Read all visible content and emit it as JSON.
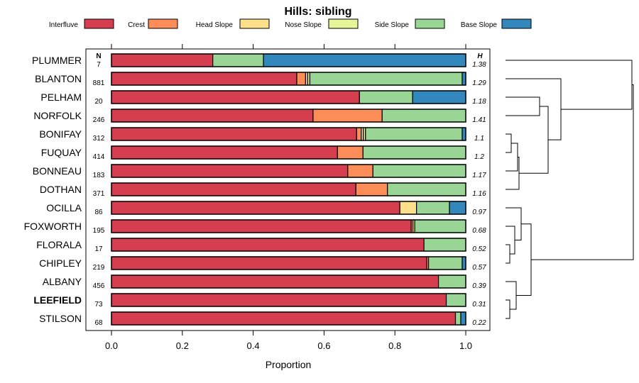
{
  "chart_data": {
    "type": "bar",
    "orientation": "horizontal",
    "stacked": true,
    "title": "Hills: sibling",
    "xlabel": "Proportion",
    "xlim": [
      0,
      1
    ],
    "xticks": [
      "0.0",
      "0.2",
      "0.4",
      "0.6",
      "0.8",
      "1.0"
    ],
    "n_header": "N",
    "h_header": "H",
    "legend_position": "top",
    "series_names": [
      "Interfluve",
      "Crest",
      "Head Slope",
      "Nose Slope",
      "Side Slope",
      "Base Slope"
    ],
    "colors": [
      "#D53E4F",
      "#FC8D59",
      "#FEE08B",
      "#E6F598",
      "#99D594",
      "#3288BD"
    ],
    "categories": [
      {
        "name": "PLUMMER",
        "n": "7",
        "h": "1.38",
        "bold": false,
        "values": [
          0.286,
          0,
          0,
          0,
          0.143,
          0.571
        ]
      },
      {
        "name": "BLANTON",
        "n": "881",
        "h": "1.29",
        "bold": false,
        "values": [
          0.523,
          0.025,
          0.006,
          0.006,
          0.43,
          0.01
        ]
      },
      {
        "name": "PELHAM",
        "n": "20",
        "h": "1.18",
        "bold": false,
        "values": [
          0.7,
          0,
          0,
          0,
          0.15,
          0.15
        ]
      },
      {
        "name": "NORFOLK",
        "n": "246",
        "h": "1.41",
        "bold": false,
        "values": [
          0.569,
          0.195,
          0,
          0,
          0.236,
          0
        ]
      },
      {
        "name": "BONIFAY",
        "n": "312",
        "h": "1.1",
        "bold": false,
        "values": [
          0.692,
          0.013,
          0.006,
          0.006,
          0.273,
          0.01
        ]
      },
      {
        "name": "FUQUAY",
        "n": "414",
        "h": "1.2",
        "bold": false,
        "values": [
          0.638,
          0.072,
          0,
          0,
          0.29,
          0
        ]
      },
      {
        "name": "BONNEAU",
        "n": "183",
        "h": "1.17",
        "bold": false,
        "values": [
          0.667,
          0.071,
          0,
          0,
          0.262,
          0
        ]
      },
      {
        "name": "DOTHAN",
        "n": "371",
        "h": "1.16",
        "bold": false,
        "values": [
          0.69,
          0.089,
          0,
          0,
          0.221,
          0
        ]
      },
      {
        "name": "OCILLA",
        "n": "86",
        "h": "0.97",
        "bold": false,
        "values": [
          0.814,
          0,
          0.047,
          0,
          0.093,
          0.046
        ]
      },
      {
        "name": "FOXWORTH",
        "n": "195",
        "h": "0.68",
        "bold": false,
        "values": [
          0.846,
          0.005,
          0,
          0.005,
          0.144,
          0
        ]
      },
      {
        "name": "FLORALA",
        "n": "17",
        "h": "0.52",
        "bold": false,
        "values": [
          0.882,
          0,
          0,
          0,
          0.118,
          0
        ]
      },
      {
        "name": "CHIPLEY",
        "n": "219",
        "h": "0.57",
        "bold": false,
        "values": [
          0.89,
          0.005,
          0,
          0,
          0.095,
          0.01
        ]
      },
      {
        "name": "ALBANY",
        "n": "456",
        "h": "0.39",
        "bold": false,
        "values": [
          0.923,
          0,
          0,
          0,
          0.077,
          0
        ]
      },
      {
        "name": "LEEFIELD",
        "n": "73",
        "h": "0.31",
        "bold": true,
        "values": [
          0.945,
          0,
          0,
          0,
          0.055,
          0
        ]
      },
      {
        "name": "STILSON",
        "n": "68",
        "h": "0.22",
        "bold": false,
        "values": [
          0.971,
          0,
          0,
          0,
          0.015,
          0.014
        ]
      }
    ]
  }
}
